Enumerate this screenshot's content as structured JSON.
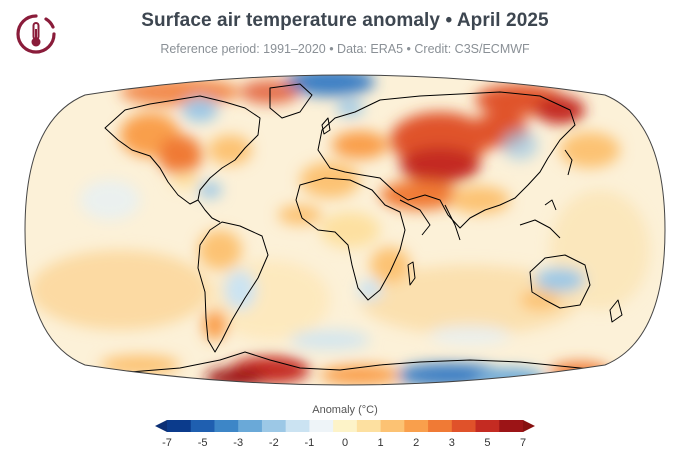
{
  "header": {
    "title": "Surface air temperature anomaly • April 2025",
    "subtitle": "Reference period: 1991–2020 • Data: ERA5 • Credit: C3S/ECMWF"
  },
  "logo": {
    "icon": "thermometer-icon",
    "color": "#8a1c3a"
  },
  "colorbar": {
    "title": "Anomaly (°C)",
    "ticks": [
      "-7",
      "-5",
      "-3",
      "-2",
      "-1",
      "0",
      "1",
      "2",
      "3",
      "5",
      "7"
    ],
    "colors": [
      "#0b3b8c",
      "#1f5fb0",
      "#3d86c7",
      "#6aa9d8",
      "#9cc8e6",
      "#cbe3f2",
      "#eef4f8",
      "#fdf3c8",
      "#fde0a0",
      "#fcc273",
      "#f99f4c",
      "#f07a35",
      "#e0522a",
      "#c42b22",
      "#9c1416"
    ],
    "low_end": "#0b2f75",
    "high_end": "#87100f"
  },
  "map": {
    "ocean_base": "#fcf3dc",
    "land_outline": "#000000"
  }
}
